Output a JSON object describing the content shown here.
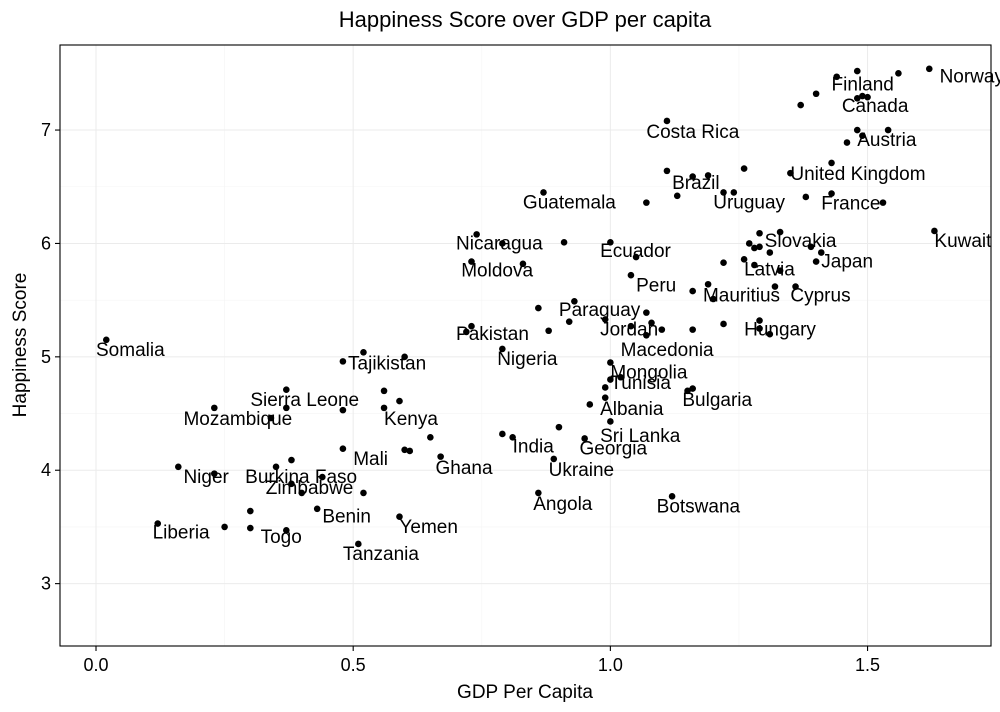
{
  "chart_data": {
    "type": "scatter",
    "title": "Happiness Score over GDP per capita",
    "xlabel": "GDP Per Capita",
    "ylabel": "Happiness Score",
    "xlim": [
      -0.07,
      1.74
    ],
    "ylim": [
      2.45,
      7.75
    ],
    "x_ticks": [
      0.0,
      0.5,
      1.0,
      1.5
    ],
    "x_tick_labels": [
      "0.0",
      "0.5",
      "1.0",
      "1.5"
    ],
    "y_ticks": [
      3,
      4,
      5,
      6,
      7
    ],
    "y_tick_labels": [
      "3",
      "4",
      "5",
      "6",
      "7"
    ],
    "grid": true,
    "point_color": "#000000",
    "points": [
      {
        "x": 1.62,
        "y": 7.54
      },
      {
        "x": 1.56,
        "y": 7.5
      },
      {
        "x": 1.48,
        "y": 7.52
      },
      {
        "x": 1.44,
        "y": 7.47
      },
      {
        "x": 1.4,
        "y": 7.32
      },
      {
        "x": 1.37,
        "y": 7.22
      },
      {
        "x": 1.48,
        "y": 7.28
      },
      {
        "x": 1.49,
        "y": 7.3
      },
      {
        "x": 1.5,
        "y": 7.29
      },
      {
        "x": 1.48,
        "y": 7.0
      },
      {
        "x": 1.54,
        "y": 7.0
      },
      {
        "x": 1.49,
        "y": 6.95
      },
      {
        "x": 1.46,
        "y": 6.89
      },
      {
        "x": 1.11,
        "y": 7.08
      },
      {
        "x": 1.43,
        "y": 6.71
      },
      {
        "x": 1.35,
        "y": 6.62
      },
      {
        "x": 1.26,
        "y": 6.66
      },
      {
        "x": 1.11,
        "y": 6.64
      },
      {
        "x": 1.16,
        "y": 6.59
      },
      {
        "x": 1.19,
        "y": 6.6
      },
      {
        "x": 1.13,
        "y": 6.42
      },
      {
        "x": 1.22,
        "y": 6.45
      },
      {
        "x": 1.24,
        "y": 6.45
      },
      {
        "x": 1.43,
        "y": 6.44
      },
      {
        "x": 1.38,
        "y": 6.41
      },
      {
        "x": 1.53,
        "y": 6.36
      },
      {
        "x": 1.07,
        "y": 6.36
      },
      {
        "x": 0.87,
        "y": 6.45
      },
      {
        "x": 1.63,
        "y": 6.11
      },
      {
        "x": 1.29,
        "y": 6.09
      },
      {
        "x": 1.33,
        "y": 6.1
      },
      {
        "x": 1.27,
        "y": 6.0
      },
      {
        "x": 1.29,
        "y": 5.97
      },
      {
        "x": 1.28,
        "y": 5.96
      },
      {
        "x": 1.31,
        "y": 5.92
      },
      {
        "x": 1.39,
        "y": 5.97
      },
      {
        "x": 1.41,
        "y": 5.92
      },
      {
        "x": 1.4,
        "y": 5.84
      },
      {
        "x": 1.26,
        "y": 5.86
      },
      {
        "x": 1.22,
        "y": 5.83
      },
      {
        "x": 1.28,
        "y": 5.81
      },
      {
        "x": 1.33,
        "y": 5.76
      },
      {
        "x": 1.0,
        "y": 6.01
      },
      {
        "x": 1.05,
        "y": 5.88
      },
      {
        "x": 0.91,
        "y": 6.01
      },
      {
        "x": 0.74,
        "y": 6.08
      },
      {
        "x": 0.79,
        "y": 6.0
      },
      {
        "x": 0.73,
        "y": 5.84
      },
      {
        "x": 0.83,
        "y": 5.82
      },
      {
        "x": 1.04,
        "y": 5.72
      },
      {
        "x": 1.19,
        "y": 5.64
      },
      {
        "x": 1.2,
        "y": 5.51
      },
      {
        "x": 1.16,
        "y": 5.58
      },
      {
        "x": 1.32,
        "y": 5.62
      },
      {
        "x": 1.36,
        "y": 5.62
      },
      {
        "x": 0.93,
        "y": 5.49
      },
      {
        "x": 0.86,
        "y": 5.43
      },
      {
        "x": 1.07,
        "y": 5.39
      },
      {
        "x": 0.99,
        "y": 5.33
      },
      {
        "x": 1.04,
        "y": 5.27
      },
      {
        "x": 1.08,
        "y": 5.3
      },
      {
        "x": 1.1,
        "y": 5.24
      },
      {
        "x": 1.07,
        "y": 5.19
      },
      {
        "x": 1.16,
        "y": 5.24
      },
      {
        "x": 0.92,
        "y": 5.31
      },
      {
        "x": 0.88,
        "y": 5.23
      },
      {
        "x": 1.22,
        "y": 5.29
      },
      {
        "x": 1.29,
        "y": 5.32
      },
      {
        "x": 1.29,
        "y": 5.25
      },
      {
        "x": 1.31,
        "y": 5.2
      },
      {
        "x": 0.73,
        "y": 5.27
      },
      {
        "x": 0.72,
        "y": 5.22
      },
      {
        "x": 0.79,
        "y": 5.07
      },
      {
        "x": 0.02,
        "y": 5.15
      },
      {
        "x": 0.52,
        "y": 5.04
      },
      {
        "x": 0.48,
        "y": 4.96
      },
      {
        "x": 0.6,
        "y": 5.0
      },
      {
        "x": 1.0,
        "y": 4.95
      },
      {
        "x": 1.0,
        "y": 4.8
      },
      {
        "x": 1.02,
        "y": 4.82
      },
      {
        "x": 0.99,
        "y": 4.73
      },
      {
        "x": 0.99,
        "y": 4.64
      },
      {
        "x": 0.96,
        "y": 4.58
      },
      {
        "x": 1.15,
        "y": 4.7
      },
      {
        "x": 1.16,
        "y": 4.72
      },
      {
        "x": 0.37,
        "y": 4.71
      },
      {
        "x": 0.56,
        "y": 4.7
      },
      {
        "x": 0.59,
        "y": 4.61
      },
      {
        "x": 0.37,
        "y": 4.55
      },
      {
        "x": 0.56,
        "y": 4.55
      },
      {
        "x": 0.48,
        "y": 4.53
      },
      {
        "x": 0.23,
        "y": 4.55
      },
      {
        "x": 0.34,
        "y": 4.46
      },
      {
        "x": 0.9,
        "y": 4.38
      },
      {
        "x": 1.0,
        "y": 4.43
      },
      {
        "x": 0.79,
        "y": 4.32
      },
      {
        "x": 0.81,
        "y": 4.29
      },
      {
        "x": 0.95,
        "y": 4.28
      },
      {
        "x": 0.65,
        "y": 4.29
      },
      {
        "x": 0.48,
        "y": 4.19
      },
      {
        "x": 0.6,
        "y": 4.18
      },
      {
        "x": 0.61,
        "y": 4.17
      },
      {
        "x": 0.67,
        "y": 4.12
      },
      {
        "x": 0.89,
        "y": 4.1
      },
      {
        "x": 0.38,
        "y": 4.09
      },
      {
        "x": 0.35,
        "y": 4.03
      },
      {
        "x": 0.16,
        "y": 4.03
      },
      {
        "x": 0.23,
        "y": 3.97
      },
      {
        "x": 0.44,
        "y": 3.94
      },
      {
        "x": 0.38,
        "y": 3.88
      },
      {
        "x": 0.4,
        "y": 3.8
      },
      {
        "x": 0.52,
        "y": 3.8
      },
      {
        "x": 0.86,
        "y": 3.8
      },
      {
        "x": 1.12,
        "y": 3.77
      },
      {
        "x": 0.3,
        "y": 3.64
      },
      {
        "x": 0.43,
        "y": 3.66
      },
      {
        "x": 0.59,
        "y": 3.59
      },
      {
        "x": 0.12,
        "y": 3.53
      },
      {
        "x": 0.25,
        "y": 3.5
      },
      {
        "x": 0.3,
        "y": 3.49
      },
      {
        "x": 0.37,
        "y": 3.47
      },
      {
        "x": 0.51,
        "y": 3.35
      }
    ],
    "labels": [
      {
        "text": "Norway",
        "x": 1.64,
        "y": 7.48
      },
      {
        "text": "Finland",
        "x": 1.43,
        "y": 7.41
      },
      {
        "text": "Canada",
        "x": 1.45,
        "y": 7.22
      },
      {
        "text": "Austria",
        "x": 1.48,
        "y": 6.92
      },
      {
        "text": "Costa Rica",
        "x": 1.07,
        "y": 6.99
      },
      {
        "text": "United Kingdom",
        "x": 1.35,
        "y": 6.62
      },
      {
        "text": "Brazil",
        "x": 1.12,
        "y": 6.54
      },
      {
        "text": "Guatemala",
        "x": 0.83,
        "y": 6.37
      },
      {
        "text": "Uruguay",
        "x": 1.2,
        "y": 6.37
      },
      {
        "text": "France",
        "x": 1.41,
        "y": 6.36
      },
      {
        "text": "Kuwait",
        "x": 1.63,
        "y": 6.03
      },
      {
        "text": "Slovakia",
        "x": 1.3,
        "y": 6.03
      },
      {
        "text": "Nicaragua",
        "x": 0.7,
        "y": 6.01
      },
      {
        "text": "Ecuador",
        "x": 0.98,
        "y": 5.94
      },
      {
        "text": "Japan",
        "x": 1.41,
        "y": 5.85
      },
      {
        "text": "Moldova",
        "x": 0.71,
        "y": 5.77
      },
      {
        "text": "Latvia",
        "x": 1.26,
        "y": 5.78
      },
      {
        "text": "Peru",
        "x": 1.05,
        "y": 5.64
      },
      {
        "text": "Mauritius",
        "x": 1.18,
        "y": 5.55
      },
      {
        "text": "Cyprus",
        "x": 1.35,
        "y": 5.55
      },
      {
        "text": "Paraguay",
        "x": 0.9,
        "y": 5.42
      },
      {
        "text": "Jordan",
        "x": 0.98,
        "y": 5.25
      },
      {
        "text": "Hungary",
        "x": 1.26,
        "y": 5.25
      },
      {
        "text": "Pakistan",
        "x": 0.7,
        "y": 5.21
      },
      {
        "text": "Macedonia",
        "x": 1.02,
        "y": 5.07
      },
      {
        "text": "Somalia",
        "x": 0.0,
        "y": 5.07
      },
      {
        "text": "Nigeria",
        "x": 0.78,
        "y": 4.99
      },
      {
        "text": "Tajikistan",
        "x": 0.49,
        "y": 4.95
      },
      {
        "text": "Mongolia",
        "x": 1.0,
        "y": 4.87
      },
      {
        "text": "Tunisia",
        "x": 1.0,
        "y": 4.78
      },
      {
        "text": "Bulgaria",
        "x": 1.14,
        "y": 4.63
      },
      {
        "text": "Sierra Leone",
        "x": 0.3,
        "y": 4.63
      },
      {
        "text": "Albania",
        "x": 0.98,
        "y": 4.55
      },
      {
        "text": "Mozambique",
        "x": 0.17,
        "y": 4.46
      },
      {
        "text": "Kenya",
        "x": 0.56,
        "y": 4.46
      },
      {
        "text": "Sri Lanka",
        "x": 0.98,
        "y": 4.31
      },
      {
        "text": "India",
        "x": 0.81,
        "y": 4.22
      },
      {
        "text": "Georgia",
        "x": 0.94,
        "y": 4.2
      },
      {
        "text": "Mali",
        "x": 0.5,
        "y": 4.11
      },
      {
        "text": "Ghana",
        "x": 0.66,
        "y": 4.03
      },
      {
        "text": "Ukraine",
        "x": 0.88,
        "y": 4.01
      },
      {
        "text": "Niger",
        "x": 0.17,
        "y": 3.95
      },
      {
        "text": "Burkina Faso",
        "x": 0.29,
        "y": 3.95
      },
      {
        "text": "Zimbabwe",
        "x": 0.33,
        "y": 3.85
      },
      {
        "text": "Angola",
        "x": 0.85,
        "y": 3.71
      },
      {
        "text": "Botswana",
        "x": 1.09,
        "y": 3.69
      },
      {
        "text": "Benin",
        "x": 0.44,
        "y": 3.6
      },
      {
        "text": "Yemen",
        "x": 0.59,
        "y": 3.51
      },
      {
        "text": "Liberia",
        "x": 0.11,
        "y": 3.46
      },
      {
        "text": "Togo",
        "x": 0.32,
        "y": 3.42
      },
      {
        "text": "Tanzania",
        "x": 0.48,
        "y": 3.27
      }
    ]
  }
}
